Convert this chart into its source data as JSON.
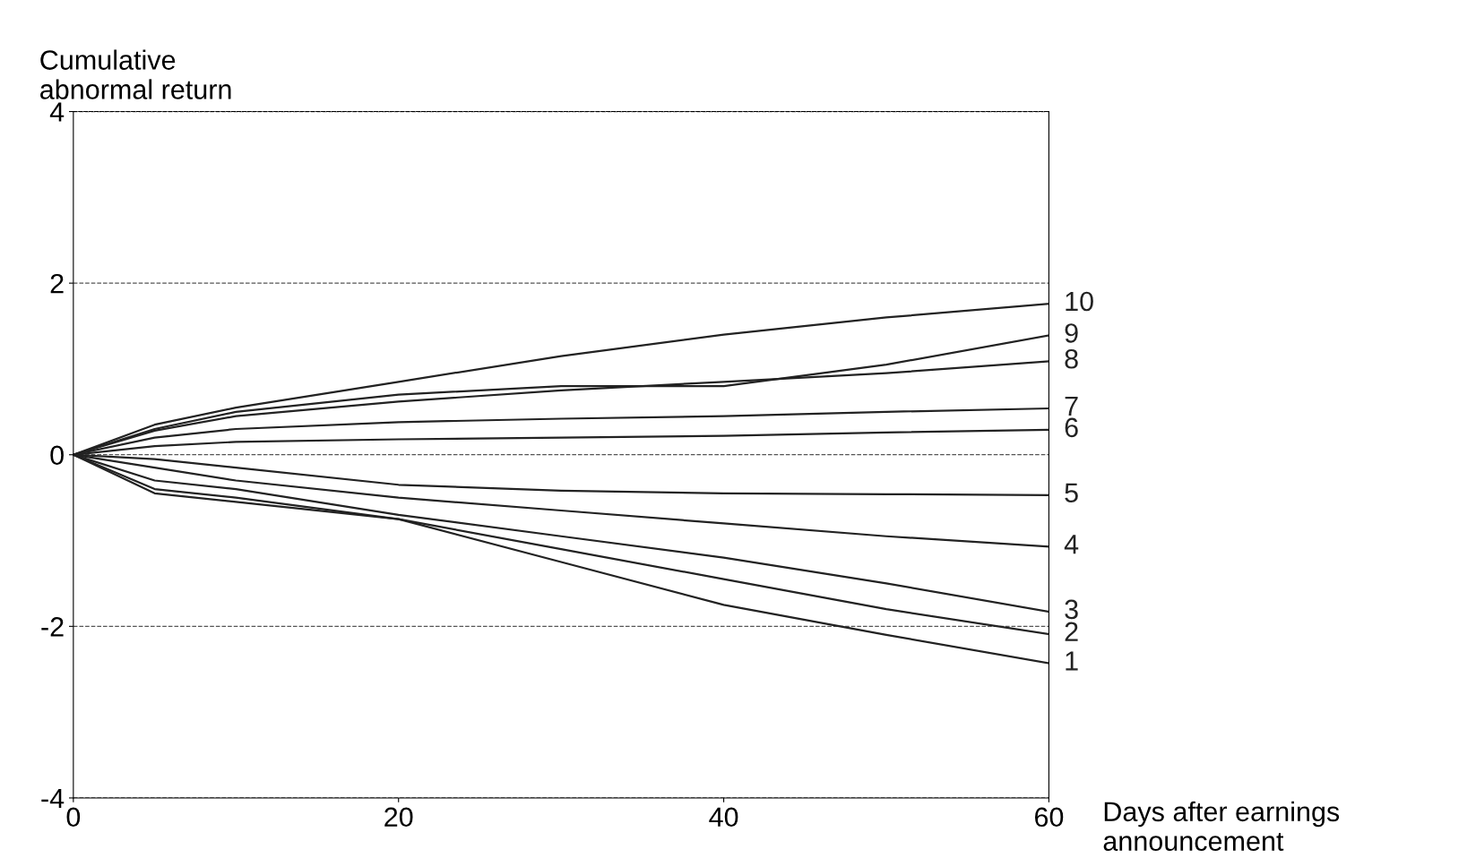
{
  "chart_data": {
    "type": "line",
    "xlabel": "Days after earnings\nannouncement",
    "ylabel": "Cumulative\nabnormal return",
    "x": [
      0,
      5,
      10,
      20,
      30,
      40,
      50,
      60
    ],
    "xlim": [
      0,
      60
    ],
    "xticks": [
      0,
      20,
      40,
      60
    ],
    "ylim": [
      -4,
      4
    ],
    "yticks": [
      -4,
      -2,
      0,
      2,
      4
    ],
    "grid": "y",
    "legend": false,
    "marker": "none",
    "line_style": "solid",
    "series": [
      {
        "name": "10",
        "color": "#222222",
        "values": [
          0,
          0.35,
          0.55,
          0.85,
          1.15,
          1.4,
          1.6,
          1.76
        ]
      },
      {
        "name": "9",
        "color": "#222222",
        "values": [
          0,
          0.3,
          0.5,
          0.7,
          0.8,
          0.8,
          1.05,
          1.39
        ]
      },
      {
        "name": "8",
        "color": "#222222",
        "values": [
          0,
          0.28,
          0.45,
          0.62,
          0.75,
          0.85,
          0.95,
          1.09
        ]
      },
      {
        "name": "7",
        "color": "#222222",
        "values": [
          0,
          0.2,
          0.3,
          0.38,
          0.42,
          0.45,
          0.5,
          0.54
        ]
      },
      {
        "name": "6",
        "color": "#222222",
        "values": [
          0,
          0.1,
          0.15,
          0.18,
          0.2,
          0.22,
          0.26,
          0.29
        ]
      },
      {
        "name": "5",
        "color": "#222222",
        "values": [
          0,
          -0.05,
          -0.15,
          -0.35,
          -0.42,
          -0.45,
          -0.46,
          -0.47
        ]
      },
      {
        "name": "4",
        "color": "#222222",
        "values": [
          0,
          -0.15,
          -0.3,
          -0.5,
          -0.65,
          -0.8,
          -0.95,
          -1.07
        ]
      },
      {
        "name": "3",
        "color": "#222222",
        "values": [
          0,
          -0.3,
          -0.4,
          -0.7,
          -0.95,
          -1.2,
          -1.5,
          -1.83
        ]
      },
      {
        "name": "2",
        "color": "#222222",
        "values": [
          0,
          -0.4,
          -0.5,
          -0.75,
          -1.1,
          -1.45,
          -1.8,
          -2.09
        ]
      },
      {
        "name": "1",
        "color": "#222222",
        "values": [
          0,
          -0.45,
          -0.55,
          -0.75,
          -1.25,
          -1.75,
          -2.1,
          -2.43
        ]
      }
    ]
  }
}
